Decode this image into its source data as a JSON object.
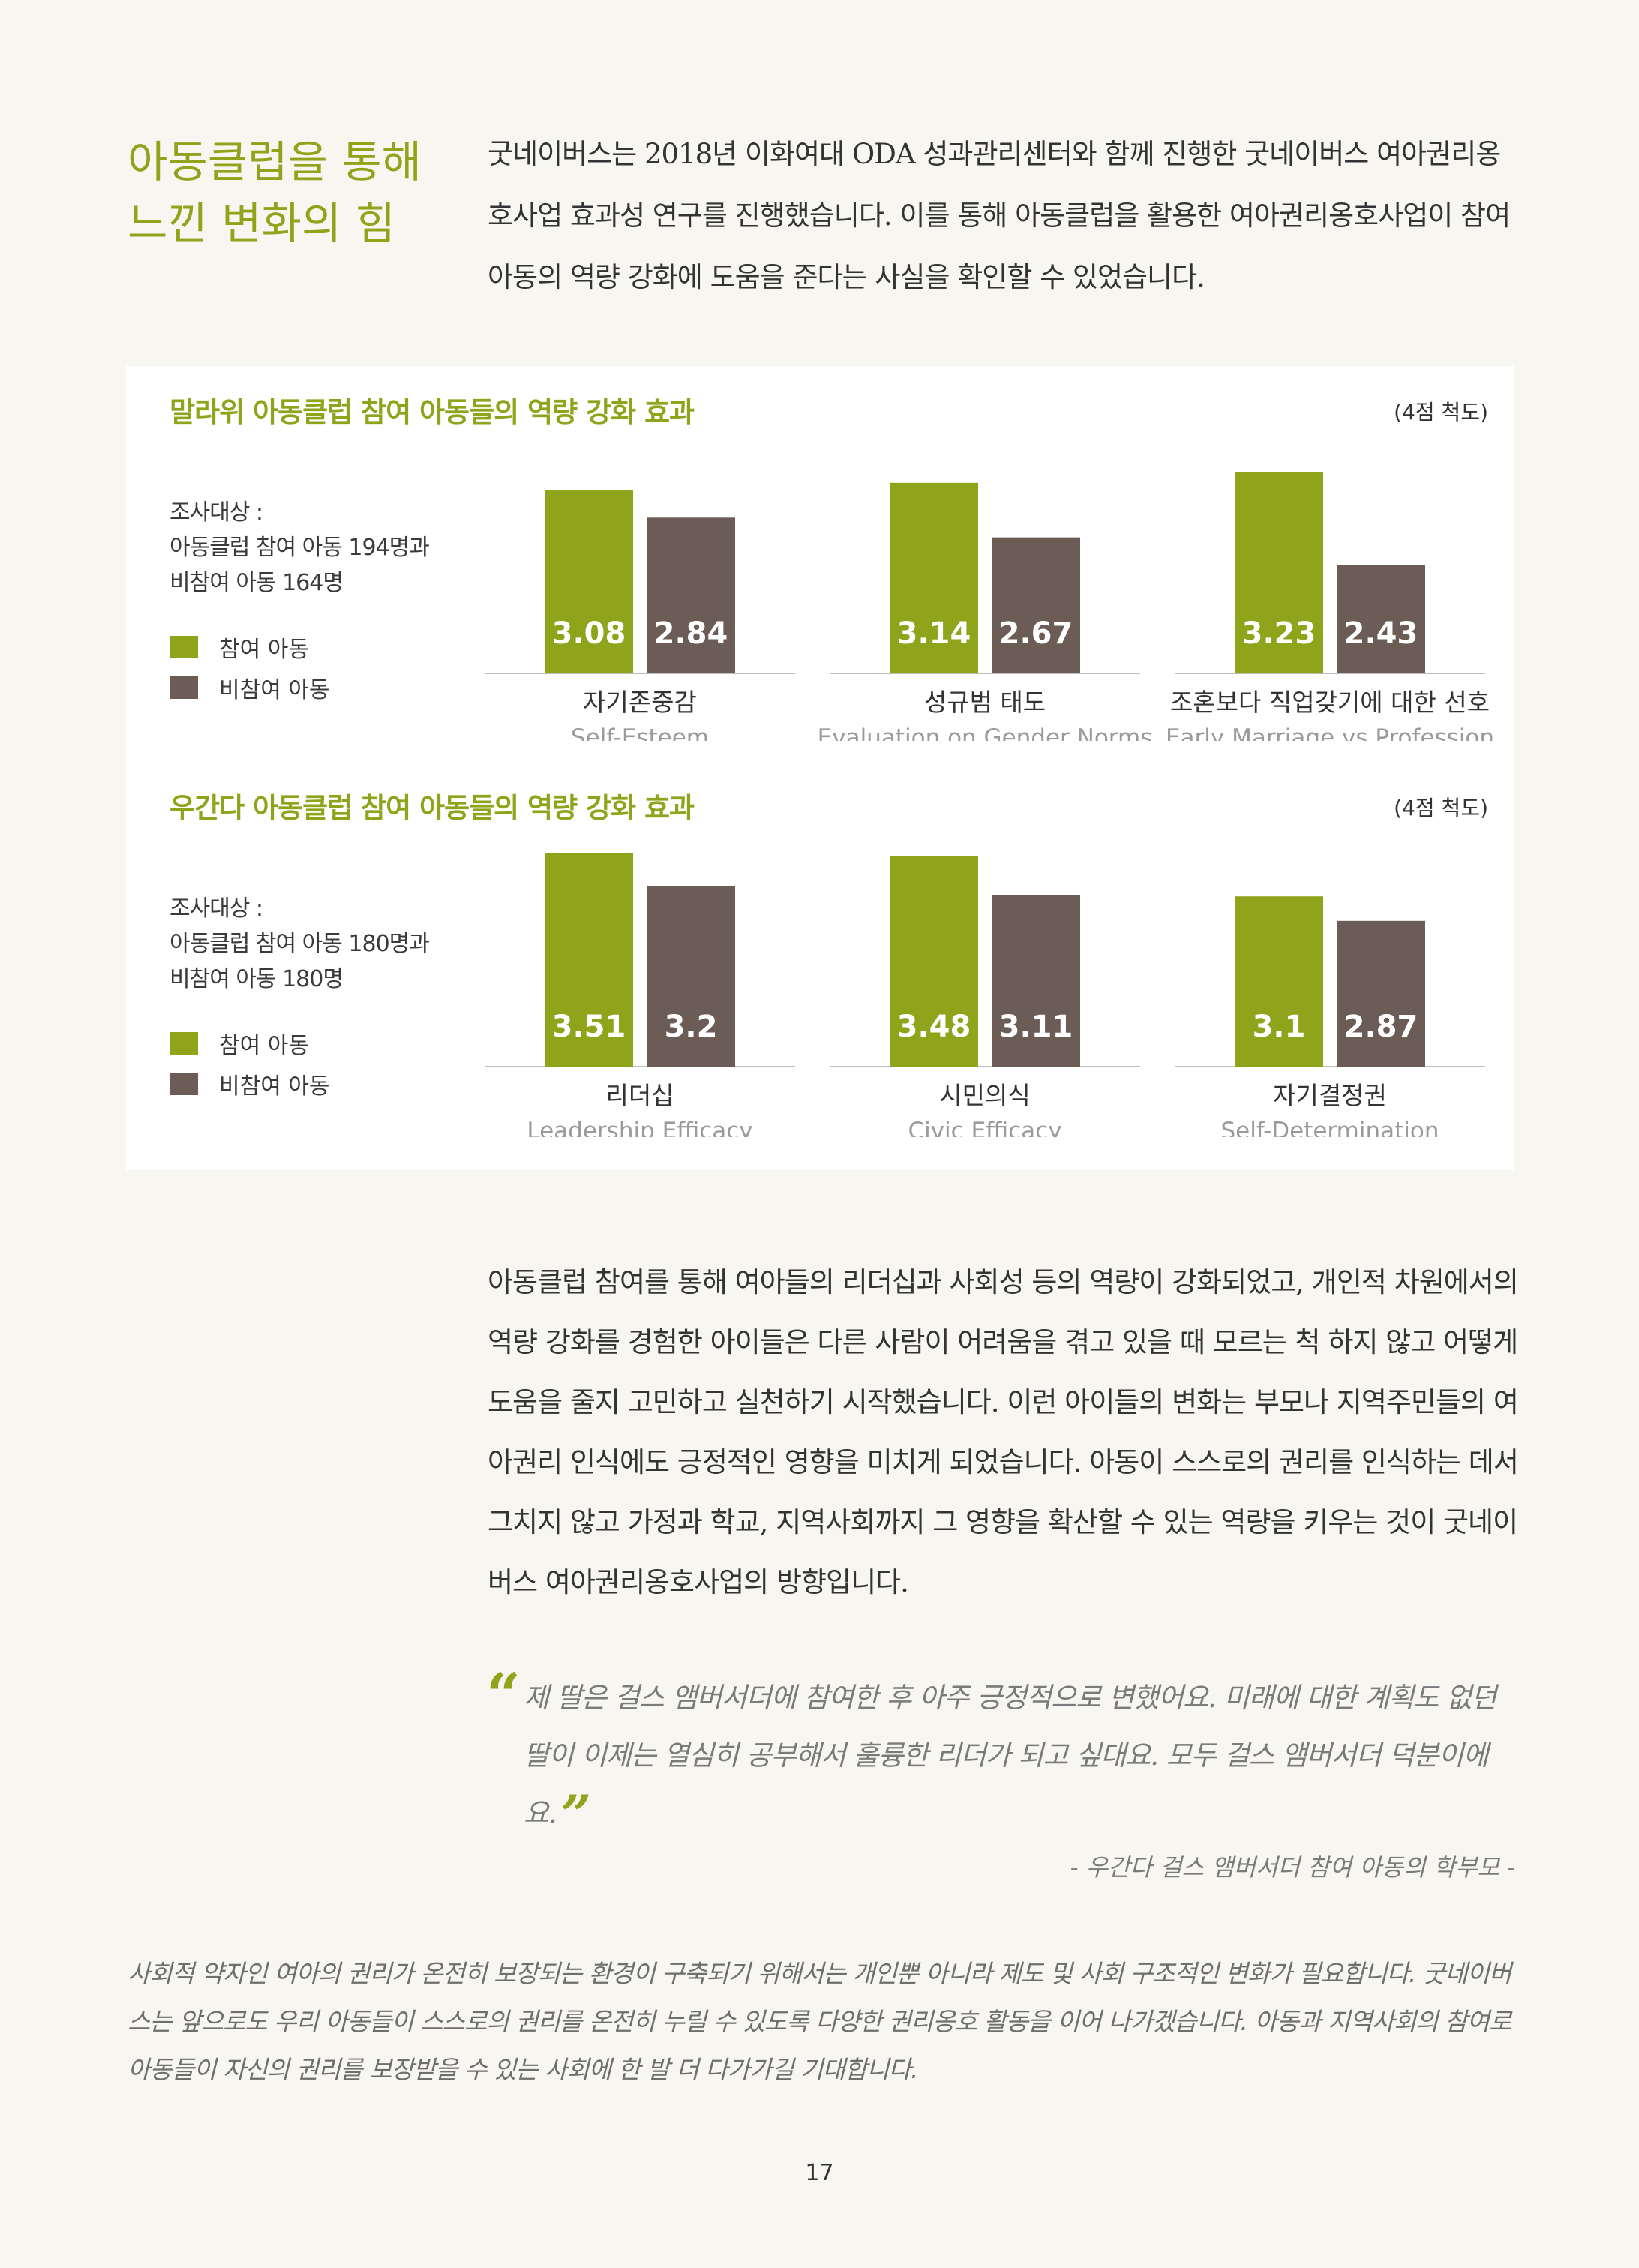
{
  "title": "아동클럽을 통해 느낀 변화의 힘",
  "intro": "굿네이버스는 2018년 이화여대 ODA 성과관리센터와 함께 진행한 굿네이버스 여아권리옹호사업 효과성 연구를 진행했습니다. 이를 통해 아동클럽을 활용한 여아권리옹호사업이 참여 아동의 역량 강화에 도움을 준다는 사실을 확인할 수 있었습니다.",
  "colors": {
    "participant": "#8fa31b",
    "non_participant": "#6b5d55",
    "accent": "#8fa31b"
  },
  "chart_data": [
    {
      "type": "bar",
      "title": "말라위 아동클럽 참여 아동들의 역량 강화 효과",
      "survey": "조사대상 :\n아동클럽 참여 아동 194명과\n비참여 아동 164명",
      "scale_note": "(4점 척도)",
      "categories": [
        "자기존중감",
        "성규범 태도",
        "조혼보다 직업갖기에 대한 선호"
      ],
      "categories_en": [
        "Self-Esteem",
        "Evaluation on Gender Norms",
        "Early Marriage vs Profession"
      ],
      "series": [
        {
          "name": "참여 아동",
          "values": [
            3.08,
            3.14,
            3.23
          ]
        },
        {
          "name": "비참여 아동",
          "values": [
            2.84,
            2.67,
            2.43
          ]
        }
      ],
      "ylim": [
        1.5,
        3.5
      ],
      "legend": "left"
    },
    {
      "type": "bar",
      "title": "우간다 아동클럽 참여 아동들의 역량 강화 효과",
      "survey": "조사대상 :\n아동클럽 참여 아동 180명과\n비참여 아동 180명",
      "scale_note": "(4점 척도)",
      "categories": [
        "리더십",
        "시민의식",
        "자기결정권"
      ],
      "categories_en": [
        "Leadership Efficacy",
        "Civic Efficacy",
        "Self-Determination"
      ],
      "series": [
        {
          "name": "참여 아동",
          "values": [
            3.51,
            3.48,
            3.1
          ]
        },
        {
          "name": "비참여 아동",
          "values": [
            3.2,
            3.11,
            2.87
          ]
        }
      ],
      "ylim": [
        1.5,
        3.8
      ],
      "legend": "left"
    }
  ],
  "body": "아동클럽 참여를 통해 여아들의 리더십과 사회성 등의 역량이 강화되었고, 개인적 차원에서의 역량 강화를 경험한 아이들은 다른 사람이 어려움을 겪고 있을 때 모르는 척 하지 않고 어떻게 도움을 줄지 고민하고 실천하기 시작했습니다. 이런 아이들의 변화는 부모나 지역주민들의 여아권리 인식에도 긍정적인 영향을 미치게 되었습니다. 아동이 스스로의 권리를 인식하는 데서 그치지 않고 가정과 학교, 지역사회까지 그 영향을 확산할 수 있는 역량을 키우는 것이 굿네이버스 여아권리옹호사업의 방향입니다.",
  "quote": {
    "open_mark": "“",
    "close_mark": "”",
    "text": "제 딸은 걸스 앰버서더에 참여한 후 아주 긍정적으로 변했어요. 미래에 대한 계획도 없던 딸이 이제는 열심히 공부해서 훌륭한 리더가 되고 싶대요. 모두 걸스 앰버서더 덕분이에요.",
    "attribution": "- 우간다 걸스 앰버서더 참여 아동의 학부모 -"
  },
  "closing": "사회적 약자인 여아의 권리가 온전히 보장되는 환경이 구축되기 위해서는 개인뿐 아니라 제도 및 사회 구조적인 변화가 필요합니다. 굿네이버스는 앞으로도 우리 아동들이 스스로의 권리를 온전히 누릴 수 있도록 다양한 권리옹호 활동을 이어 나가겠습니다. 아동과 지역사회의 참여로 아동들이 자신의 권리를 보장받을 수 있는 사회에 한 발 더 다가가길 기대합니다.",
  "page_number": "17"
}
